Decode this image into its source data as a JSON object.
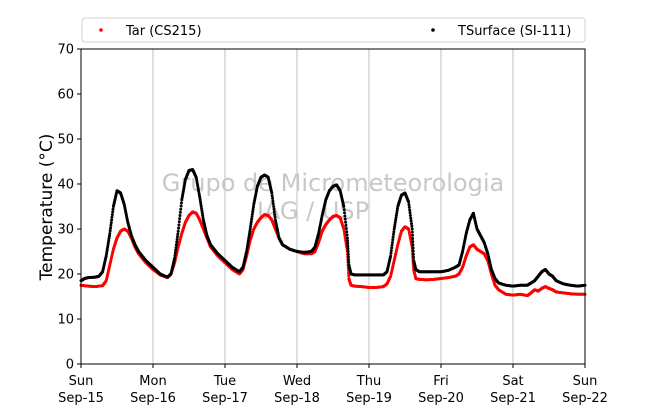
{
  "chart_data": {
    "type": "scatter",
    "ylabel": "Temperature (°C)",
    "ylim": [
      0,
      70
    ],
    "yticks": [
      0,
      10,
      20,
      30,
      40,
      50,
      60,
      70
    ],
    "xlim": [
      0,
      7
    ],
    "xticks": [
      {
        "x": 0,
        "day": "Sun",
        "date": "Sep-15"
      },
      {
        "x": 1,
        "day": "Mon",
        "date": "Sep-16"
      },
      {
        "x": 2,
        "day": "Tue",
        "date": "Sep-17"
      },
      {
        "x": 3,
        "day": "Wed",
        "date": "Sep-18"
      },
      {
        "x": 4,
        "day": "Thu",
        "date": "Sep-19"
      },
      {
        "x": 5,
        "day": "Fri",
        "date": "Sep-20"
      },
      {
        "x": 6,
        "day": "Sat",
        "date": "Sep-21"
      },
      {
        "x": 7,
        "day": "Sun",
        "date": "Sep-22"
      }
    ],
    "grid": "vertical",
    "legend": "top",
    "watermark": [
      "Grupo de Micrometeorologia",
      "IAG / USP"
    ],
    "series": [
      {
        "name": "Tar (CS215)",
        "color": "#ff0000",
        "points": [
          [
            0.0,
            17.5
          ],
          [
            0.1,
            17.3
          ],
          [
            0.2,
            17.2
          ],
          [
            0.3,
            17.4
          ],
          [
            0.35,
            18.5
          ],
          [
            0.4,
            22
          ],
          [
            0.45,
            25.5
          ],
          [
            0.5,
            28
          ],
          [
            0.55,
            29.5
          ],
          [
            0.6,
            30
          ],
          [
            0.65,
            29.5
          ],
          [
            0.7,
            28
          ],
          [
            0.75,
            26
          ],
          [
            0.8,
            24.5
          ],
          [
            0.9,
            22.5
          ],
          [
            1.0,
            21
          ],
          [
            1.1,
            19.8
          ],
          [
            1.2,
            19.2
          ],
          [
            1.25,
            20
          ],
          [
            1.3,
            22.5
          ],
          [
            1.35,
            26
          ],
          [
            1.4,
            29
          ],
          [
            1.45,
            31.5
          ],
          [
            1.5,
            33
          ],
          [
            1.55,
            33.8
          ],
          [
            1.6,
            33.5
          ],
          [
            1.65,
            32
          ],
          [
            1.7,
            30
          ],
          [
            1.75,
            28
          ],
          [
            1.8,
            26
          ],
          [
            1.9,
            24
          ],
          [
            2.0,
            22.5
          ],
          [
            2.1,
            21
          ],
          [
            2.2,
            20
          ],
          [
            2.25,
            21
          ],
          [
            2.3,
            24
          ],
          [
            2.35,
            27.5
          ],
          [
            2.4,
            30
          ],
          [
            2.45,
            31.5
          ],
          [
            2.5,
            32.5
          ],
          [
            2.55,
            33.2
          ],
          [
            2.6,
            33
          ],
          [
            2.65,
            32
          ],
          [
            2.7,
            30
          ],
          [
            2.75,
            28
          ],
          [
            2.8,
            26.5
          ],
          [
            2.9,
            25.5
          ],
          [
            3.0,
            25
          ],
          [
            3.1,
            24.5
          ],
          [
            3.2,
            24.5
          ],
          [
            3.25,
            25
          ],
          [
            3.3,
            27
          ],
          [
            3.35,
            29.5
          ],
          [
            3.4,
            31
          ],
          [
            3.45,
            32
          ],
          [
            3.5,
            32.8
          ],
          [
            3.55,
            33
          ],
          [
            3.6,
            32.5
          ],
          [
            3.65,
            30
          ],
          [
            3.7,
            25
          ],
          [
            3.72,
            19
          ],
          [
            3.75,
            17.5
          ],
          [
            3.8,
            17.3
          ],
          [
            3.9,
            17.2
          ],
          [
            4.0,
            17
          ],
          [
            4.1,
            17
          ],
          [
            4.2,
            17.2
          ],
          [
            4.25,
            17.8
          ],
          [
            4.3,
            19.5
          ],
          [
            4.35,
            23
          ],
          [
            4.4,
            26.5
          ],
          [
            4.45,
            29.5
          ],
          [
            4.5,
            30.5
          ],
          [
            4.55,
            30
          ],
          [
            4.6,
            26
          ],
          [
            4.62,
            21
          ],
          [
            4.65,
            19
          ],
          [
            4.7,
            18.8
          ],
          [
            4.8,
            18.7
          ],
          [
            4.9,
            18.8
          ],
          [
            5.0,
            19
          ],
          [
            5.1,
            19.2
          ],
          [
            5.2,
            19.5
          ],
          [
            5.25,
            20
          ],
          [
            5.3,
            21.5
          ],
          [
            5.35,
            24
          ],
          [
            5.4,
            26
          ],
          [
            5.45,
            26.5
          ],
          [
            5.5,
            25.5
          ],
          [
            5.55,
            25
          ],
          [
            5.6,
            24.5
          ],
          [
            5.65,
            23
          ],
          [
            5.7,
            20
          ],
          [
            5.75,
            17.5
          ],
          [
            5.8,
            16.5
          ],
          [
            5.9,
            15.5
          ],
          [
            6.0,
            15.3
          ],
          [
            6.1,
            15.5
          ],
          [
            6.2,
            15.2
          ],
          [
            6.25,
            15.8
          ],
          [
            6.3,
            16.5
          ],
          [
            6.35,
            16.2
          ],
          [
            6.4,
            16.8
          ],
          [
            6.45,
            17.2
          ],
          [
            6.5,
            16.8
          ],
          [
            6.55,
            16.5
          ],
          [
            6.6,
            16
          ],
          [
            6.7,
            15.8
          ],
          [
            6.8,
            15.6
          ],
          [
            6.9,
            15.5
          ],
          [
            7.0,
            15.5
          ]
        ]
      },
      {
        "name": "TSurface (SI-111)",
        "color": "#000000",
        "points": [
          [
            0.0,
            18.5
          ],
          [
            0.05,
            19
          ],
          [
            0.1,
            19.2
          ],
          [
            0.2,
            19.3
          ],
          [
            0.25,
            19.5
          ],
          [
            0.3,
            20.5
          ],
          [
            0.35,
            24
          ],
          [
            0.4,
            29
          ],
          [
            0.45,
            35
          ],
          [
            0.5,
            38.5
          ],
          [
            0.55,
            38
          ],
          [
            0.6,
            35.5
          ],
          [
            0.65,
            31.5
          ],
          [
            0.7,
            28.5
          ],
          [
            0.75,
            26.5
          ],
          [
            0.8,
            25
          ],
          [
            0.9,
            23
          ],
          [
            1.0,
            21.5
          ],
          [
            1.1,
            20
          ],
          [
            1.2,
            19.3
          ],
          [
            1.25,
            20
          ],
          [
            1.3,
            23.5
          ],
          [
            1.35,
            29.5
          ],
          [
            1.4,
            36.5
          ],
          [
            1.45,
            41
          ],
          [
            1.5,
            43
          ],
          [
            1.55,
            43.2
          ],
          [
            1.6,
            41.5
          ],
          [
            1.65,
            37
          ],
          [
            1.7,
            32
          ],
          [
            1.75,
            28.5
          ],
          [
            1.8,
            26.5
          ],
          [
            1.9,
            24.5
          ],
          [
            2.0,
            23
          ],
          [
            2.1,
            21.5
          ],
          [
            2.2,
            20.5
          ],
          [
            2.25,
            21.5
          ],
          [
            2.3,
            25
          ],
          [
            2.35,
            30
          ],
          [
            2.4,
            35.5
          ],
          [
            2.45,
            39.5
          ],
          [
            2.5,
            41.5
          ],
          [
            2.55,
            42
          ],
          [
            2.6,
            41.5
          ],
          [
            2.65,
            38
          ],
          [
            2.7,
            32
          ],
          [
            2.75,
            28
          ],
          [
            2.8,
            26.5
          ],
          [
            2.9,
            25.5
          ],
          [
            3.0,
            25
          ],
          [
            3.1,
            24.8
          ],
          [
            3.2,
            25
          ],
          [
            3.25,
            26
          ],
          [
            3.3,
            29
          ],
          [
            3.35,
            33
          ],
          [
            3.4,
            36.5
          ],
          [
            3.45,
            38.5
          ],
          [
            3.5,
            39.5
          ],
          [
            3.55,
            39.8
          ],
          [
            3.6,
            38.5
          ],
          [
            3.65,
            35
          ],
          [
            3.7,
            28
          ],
          [
            3.72,
            22
          ],
          [
            3.75,
            20
          ],
          [
            3.8,
            19.8
          ],
          [
            3.9,
            19.8
          ],
          [
            4.0,
            19.8
          ],
          [
            4.1,
            19.8
          ],
          [
            4.2,
            19.8
          ],
          [
            4.25,
            20.5
          ],
          [
            4.3,
            24
          ],
          [
            4.35,
            30
          ],
          [
            4.4,
            35
          ],
          [
            4.45,
            37.5
          ],
          [
            4.5,
            38
          ],
          [
            4.55,
            36
          ],
          [
            4.6,
            30
          ],
          [
            4.62,
            23
          ],
          [
            4.65,
            21
          ],
          [
            4.7,
            20.5
          ],
          [
            4.8,
            20.5
          ],
          [
            4.9,
            20.5
          ],
          [
            5.0,
            20.5
          ],
          [
            5.1,
            20.8
          ],
          [
            5.2,
            21.5
          ],
          [
            5.25,
            22
          ],
          [
            5.3,
            25
          ],
          [
            5.35,
            29
          ],
          [
            5.4,
            32
          ],
          [
            5.45,
            33.5
          ],
          [
            5.5,
            30
          ],
          [
            5.55,
            28.5
          ],
          [
            5.6,
            27
          ],
          [
            5.65,
            24.5
          ],
          [
            5.7,
            21
          ],
          [
            5.75,
            19
          ],
          [
            5.8,
            18
          ],
          [
            5.9,
            17.5
          ],
          [
            6.0,
            17.3
          ],
          [
            6.1,
            17.5
          ],
          [
            6.2,
            17.5
          ],
          [
            6.25,
            18
          ],
          [
            6.3,
            18.5
          ],
          [
            6.35,
            19.5
          ],
          [
            6.4,
            20.5
          ],
          [
            6.45,
            21
          ],
          [
            6.5,
            20
          ],
          [
            6.55,
            19.5
          ],
          [
            6.6,
            18.5
          ],
          [
            6.7,
            17.8
          ],
          [
            6.8,
            17.5
          ],
          [
            6.9,
            17.3
          ],
          [
            7.0,
            17.5
          ]
        ]
      }
    ]
  }
}
